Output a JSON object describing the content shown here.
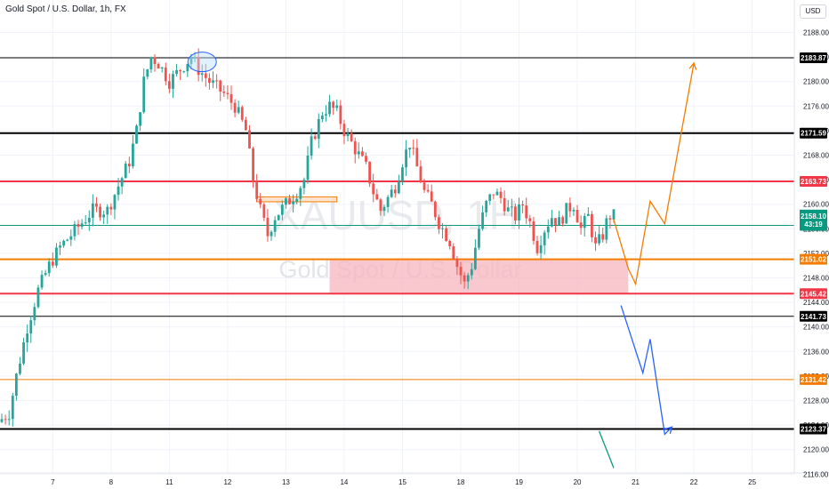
{
  "header": {
    "symbol_title": "Gold Spot / U.S. Dollar, 1h, FX",
    "currency": "USD"
  },
  "watermark": {
    "ticker": "XAUUSD, 1H",
    "name": "Gold Spot / U.S. Dollar"
  },
  "colors": {
    "up": "#26a69a",
    "down": "#ef5350",
    "black": "#000000",
    "red": "#f23645",
    "orange": "#f57c00",
    "teal": "#089981",
    "blue": "#2962ff",
    "zone": "#f7b6bd",
    "grid": "#f0f3fa"
  },
  "chart_data": {
    "type": "candlestick",
    "title": "Gold Spot / U.S. Dollar, 1h, FX",
    "ylim": [
      2116,
      2192
    ],
    "y_ticks": [
      2116,
      2120,
      2124,
      2128,
      2132,
      2136,
      2140,
      2144,
      2148,
      2152,
      2156,
      2160,
      2164,
      2168,
      2172,
      2176,
      2180,
      2184,
      2188
    ],
    "y_tick_labels": [
      "2116.00",
      "2120.00",
      "2124.00",
      "2128.00",
      "2132.00",
      "2136.00",
      "2140.00",
      "2144.00",
      "2148.00",
      "2152.00",
      "2156.00",
      "2160.00",
      "2164.00",
      "2168.00",
      "2172.00",
      "2176.00",
      "2180.00",
      "2184.00",
      "2188.00"
    ],
    "x_tick_labels": [
      "7",
      "8",
      "11",
      "12",
      "13",
      "14",
      "15",
      "18",
      "19",
      "20",
      "21",
      "22",
      "25"
    ],
    "x_tick_slots": [
      14,
      30,
      46,
      62,
      78,
      94,
      110,
      126,
      142,
      158,
      174,
      190,
      206
    ],
    "price_path": [
      [
        0,
        2124.5
      ],
      [
        3,
        2126
      ],
      [
        5,
        2132
      ],
      [
        8,
        2140
      ],
      [
        11,
        2146
      ],
      [
        14,
        2150
      ],
      [
        17,
        2153
      ],
      [
        20,
        2155
      ],
      [
        23,
        2157
      ],
      [
        26,
        2159
      ],
      [
        30,
        2159
      ],
      [
        33,
        2163
      ],
      [
        36,
        2167
      ],
      [
        38,
        2172
      ],
      [
        40,
        2180
      ],
      [
        42,
        2184
      ],
      [
        44,
        2183
      ],
      [
        47,
        2180
      ],
      [
        50,
        2182
      ],
      [
        53,
        2184
      ],
      [
        55,
        2182
      ],
      [
        58,
        2180
      ],
      [
        62,
        2178
      ],
      [
        65,
        2176
      ],
      [
        68,
        2172
      ],
      [
        70,
        2164
      ],
      [
        72,
        2159
      ],
      [
        74,
        2155
      ],
      [
        76,
        2158
      ],
      [
        79,
        2160
      ],
      [
        82,
        2162
      ],
      [
        84,
        2164
      ],
      [
        86,
        2170
      ],
      [
        89,
        2175
      ],
      [
        91,
        2176
      ],
      [
        93,
        2175
      ],
      [
        95,
        2172
      ],
      [
        97,
        2170
      ],
      [
        99,
        2168
      ],
      [
        101,
        2166
      ],
      [
        103,
        2162
      ],
      [
        105,
        2159
      ],
      [
        107,
        2161
      ],
      [
        109,
        2163
      ],
      [
        111,
        2167
      ],
      [
        113,
        2170
      ],
      [
        115,
        2166
      ],
      [
        117,
        2162
      ],
      [
        119,
        2160
      ],
      [
        121,
        2157
      ],
      [
        124,
        2154
      ],
      [
        126,
        2150
      ],
      [
        128,
        2147
      ],
      [
        130,
        2150
      ],
      [
        132,
        2156
      ],
      [
        134,
        2160
      ],
      [
        136,
        2162
      ],
      [
        138,
        2161
      ],
      [
        140,
        2159
      ],
      [
        142,
        2158
      ],
      [
        144,
        2160
      ],
      [
        146,
        2157
      ],
      [
        148,
        2153
      ],
      [
        150,
        2156
      ],
      [
        152,
        2158
      ],
      [
        154,
        2157
      ],
      [
        156,
        2159
      ],
      [
        158,
        2160
      ],
      [
        160,
        2156
      ],
      [
        162,
        2158
      ],
      [
        164,
        2153
      ],
      [
        166,
        2155
      ],
      [
        167,
        2157
      ],
      [
        168,
        2158.1
      ]
    ],
    "horizontal_levels": [
      {
        "price": 2183.87,
        "label": "2183.87",
        "color": "#000000",
        "style": "solid",
        "width": 1
      },
      {
        "price": 2171.59,
        "label": "2171.59",
        "color": "#000000",
        "style": "solid",
        "width": 2
      },
      {
        "price": 2163.73,
        "label": "2163.73",
        "color": "#f23645",
        "style": "solid",
        "width": 2
      },
      {
        "price": 2156.55,
        "label": "2156.55",
        "color": "#089981",
        "style": "solid",
        "width": 1
      },
      {
        "price": 2151.02,
        "label": "2151.02",
        "color": "#f57c00",
        "style": "solid",
        "width": 2
      },
      {
        "price": 2145.42,
        "label": "2145.42",
        "color": "#f23645",
        "style": "solid",
        "width": 2
      },
      {
        "price": 2141.73,
        "label": "2141.73",
        "color": "#000000",
        "style": "solid",
        "width": 1
      },
      {
        "price": 2131.42,
        "label": "2131.42",
        "color": "#f57c00",
        "style": "solid",
        "width": 1
      },
      {
        "price": 2123.37,
        "label": "2123.37",
        "color": "#000000",
        "style": "solid",
        "width": 2
      }
    ],
    "current_price": {
      "price": 2158.1,
      "label": "2158.10",
      "countdown": "43:19",
      "color": "#089981"
    },
    "demand_zone": {
      "x_from": 90,
      "x_to": 172,
      "price_top": 2151.02,
      "price_bottom": 2145.42
    },
    "small_zone": {
      "x_from": 70,
      "x_to": 92,
      "price_top": 2161.2,
      "price_bottom": 2160.4
    },
    "ellipse_marker": {
      "x": 55,
      "price": 2183.2
    },
    "bullish_projection": {
      "color": "#f57c00",
      "points": [
        [
          168,
          2157.5
        ],
        [
          172,
          2149.5
        ],
        [
          174,
          2147
        ],
        [
          178,
          2160.5
        ],
        [
          182,
          2156.8
        ],
        [
          190,
          2183
        ]
      ]
    },
    "bearish_projection": {
      "color": "#2962ff",
      "points": [
        [
          170,
          2143.5
        ],
        [
          176,
          2132.5
        ],
        [
          178,
          2138
        ],
        [
          182,
          2122.5
        ],
        [
          184,
          2123.7
        ]
      ]
    },
    "green_arrow": {
      "color": "#089981",
      "points": [
        [
          164,
          2123
        ],
        [
          168,
          2117
        ]
      ]
    }
  }
}
